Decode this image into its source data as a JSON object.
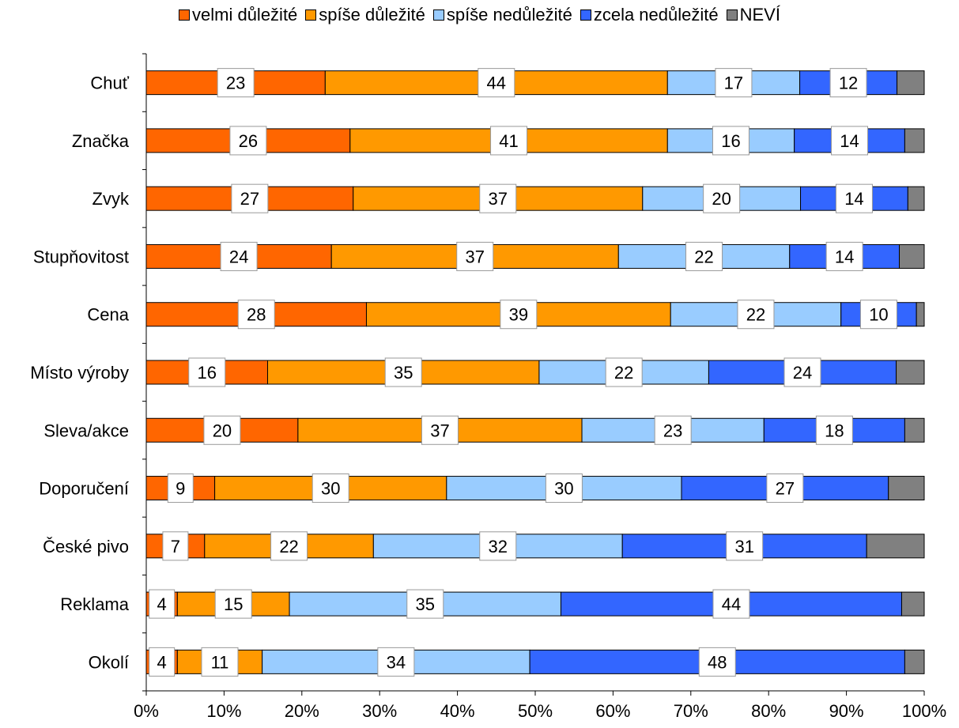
{
  "chart_data": {
    "type": "bar",
    "orientation": "horizontal",
    "stacked": "percent",
    "categories": [
      "Chuť",
      "Značka",
      "Zvyk",
      "Stupňovitost",
      "Cena",
      "Místo výroby",
      "Sleva/akce",
      "Doporučení",
      "České pivo",
      "Reklama",
      "Okolí"
    ],
    "series": [
      {
        "name": "velmi důležité",
        "color": "#ff6600",
        "values": [
          23,
          26,
          27,
          24,
          28,
          16,
          20,
          9,
          7,
          4,
          4
        ]
      },
      {
        "name": "spíše důležité",
        "color": "#ff9900",
        "values": [
          44,
          41,
          37,
          37,
          39,
          35,
          37,
          30,
          22,
          15,
          11
        ]
      },
      {
        "name": "spíše nedůležité",
        "color": "#99ccff",
        "values": [
          17,
          16,
          20,
          22,
          22,
          22,
          23,
          30,
          32,
          35,
          34
        ]
      },
      {
        "name": "zcela nedůležité",
        "color": "#3366ff",
        "values": [
          12,
          14,
          14,
          14,
          10,
          24,
          18,
          27,
          31,
          44,
          48
        ]
      },
      {
        "name": "NEVÍ",
        "color": "#808080",
        "values": [
          3,
          3,
          2,
          3,
          1,
          4,
          3,
          5,
          8,
          3,
          3
        ]
      }
    ],
    "series_shares": [
      [
        23,
        44,
        17,
        12.5,
        3.5
      ],
      [
        26.2,
        40.8,
        16.3,
        14.2,
        2.5
      ],
      [
        26.6,
        37.2,
        20.3,
        13.8,
        2.1
      ],
      [
        23.8,
        36.9,
        22.0,
        14.1,
        3.2
      ],
      [
        28.3,
        39.1,
        21.9,
        9.7,
        1.0
      ],
      [
        15.6,
        34.9,
        21.8,
        24.1,
        3.6
      ],
      [
        19.5,
        36.5,
        23.4,
        18.1,
        2.5
      ],
      [
        8.8,
        29.8,
        30.2,
        26.6,
        4.6
      ],
      [
        7.5,
        21.7,
        32.0,
        31.4,
        7.4
      ],
      [
        4.0,
        14.4,
        34.9,
        43.8,
        2.9
      ],
      [
        4.0,
        10.9,
        34.4,
        48.2,
        2.5
      ]
    ],
    "data_labels_for_series": [
      0,
      1,
      2,
      3
    ],
    "x_ticks": [
      "0%",
      "10%",
      "20%",
      "30%",
      "40%",
      "50%",
      "60%",
      "70%",
      "80%",
      "90%",
      "100%"
    ],
    "xlim": [
      0,
      100
    ],
    "grid": false,
    "legend_position": "top"
  }
}
